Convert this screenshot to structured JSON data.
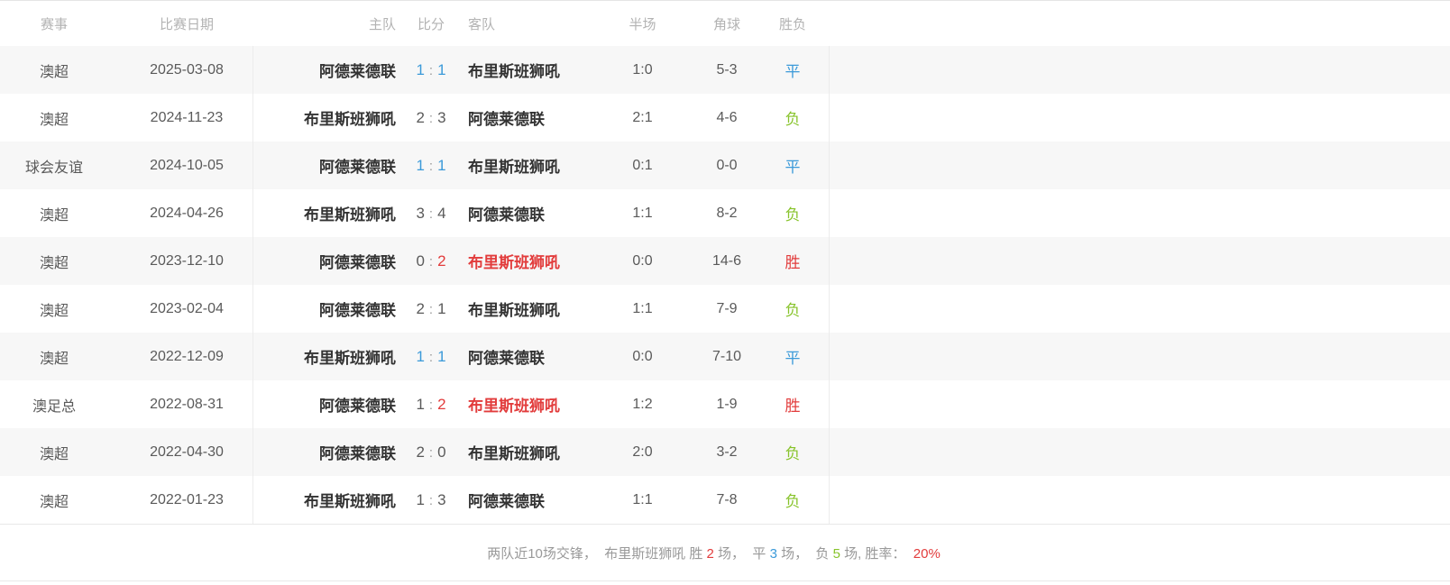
{
  "table": {
    "headers": [
      "赛事",
      "比赛日期",
      "主队",
      "比分",
      "客队",
      "半场",
      "角球",
      "胜负"
    ],
    "score_separator": ":",
    "rows": [
      {
        "competition": "澳超",
        "date": "2025-03-08",
        "home": "阿德莱德联",
        "home_color": "default",
        "score_home": "1",
        "score_away": "1",
        "score_home_color": "blue",
        "score_away_color": "blue",
        "away": "布里斯班狮吼",
        "away_color": "default",
        "half": "1:0",
        "corners": "5-3",
        "result": "平",
        "result_color": "blue"
      },
      {
        "competition": "澳超",
        "date": "2024-11-23",
        "home": "布里斯班狮吼",
        "home_color": "default",
        "score_home": "2",
        "score_away": "3",
        "score_home_color": "default",
        "score_away_color": "default",
        "away": "阿德莱德联",
        "away_color": "default",
        "half": "2:1",
        "corners": "4-6",
        "result": "负",
        "result_color": "green"
      },
      {
        "competition": "球会友谊",
        "date": "2024-10-05",
        "home": "阿德莱德联",
        "home_color": "default",
        "score_home": "1",
        "score_away": "1",
        "score_home_color": "blue",
        "score_away_color": "blue",
        "away": "布里斯班狮吼",
        "away_color": "default",
        "half": "0:1",
        "corners": "0-0",
        "result": "平",
        "result_color": "blue"
      },
      {
        "competition": "澳超",
        "date": "2024-04-26",
        "home": "布里斯班狮吼",
        "home_color": "default",
        "score_home": "3",
        "score_away": "4",
        "score_home_color": "default",
        "score_away_color": "default",
        "away": "阿德莱德联",
        "away_color": "default",
        "half": "1:1",
        "corners": "8-2",
        "result": "负",
        "result_color": "green"
      },
      {
        "competition": "澳超",
        "date": "2023-12-10",
        "home": "阿德莱德联",
        "home_color": "default",
        "score_home": "0",
        "score_away": "2",
        "score_home_color": "default",
        "score_away_color": "red",
        "away": "布里斯班狮吼",
        "away_color": "red",
        "half": "0:0",
        "corners": "14-6",
        "result": "胜",
        "result_color": "red"
      },
      {
        "competition": "澳超",
        "date": "2023-02-04",
        "home": "阿德莱德联",
        "home_color": "default",
        "score_home": "2",
        "score_away": "1",
        "score_home_color": "default",
        "score_away_color": "default",
        "away": "布里斯班狮吼",
        "away_color": "default",
        "half": "1:1",
        "corners": "7-9",
        "result": "负",
        "result_color": "green"
      },
      {
        "competition": "澳超",
        "date": "2022-12-09",
        "home": "布里斯班狮吼",
        "home_color": "default",
        "score_home": "1",
        "score_away": "1",
        "score_home_color": "blue",
        "score_away_color": "blue",
        "away": "阿德莱德联",
        "away_color": "default",
        "half": "0:0",
        "corners": "7-10",
        "result": "平",
        "result_color": "blue"
      },
      {
        "competition": "澳足总",
        "date": "2022-08-31",
        "home": "阿德莱德联",
        "home_color": "default",
        "score_home": "1",
        "score_away": "2",
        "score_home_color": "default",
        "score_away_color": "red",
        "away": "布里斯班狮吼",
        "away_color": "red",
        "half": "1:2",
        "corners": "1-9",
        "result": "胜",
        "result_color": "red"
      },
      {
        "competition": "澳超",
        "date": "2022-04-30",
        "home": "阿德莱德联",
        "home_color": "default",
        "score_home": "2",
        "score_away": "0",
        "score_home_color": "default",
        "score_away_color": "default",
        "away": "布里斯班狮吼",
        "away_color": "default",
        "half": "2:0",
        "corners": "3-2",
        "result": "负",
        "result_color": "green"
      },
      {
        "competition": "澳超",
        "date": "2022-01-23",
        "home": "布里斯班狮吼",
        "home_color": "default",
        "score_home": "1",
        "score_away": "3",
        "score_home_color": "default",
        "score_away_color": "default",
        "away": "阿德莱德联",
        "away_color": "default",
        "half": "1:1",
        "corners": "7-8",
        "result": "负",
        "result_color": "green"
      }
    ]
  },
  "footer": {
    "segments": [
      {
        "text": "两队近10场交锋，  布里斯班狮吼 胜 ",
        "color": "gray"
      },
      {
        "text": "2",
        "color": "red"
      },
      {
        "text": " 场，  平 ",
        "color": "gray"
      },
      {
        "text": "3",
        "color": "blue"
      },
      {
        "text": " 场，  负 ",
        "color": "gray"
      },
      {
        "text": "5",
        "color": "green"
      },
      {
        "text": " 场, 胜率：  ",
        "color": "gray"
      },
      {
        "text": "20%",
        "color": "red"
      }
    ]
  },
  "colors": {
    "red": "#e23c3c",
    "blue": "#3b9ad9",
    "green": "#87c32a",
    "gray": "#999999"
  }
}
